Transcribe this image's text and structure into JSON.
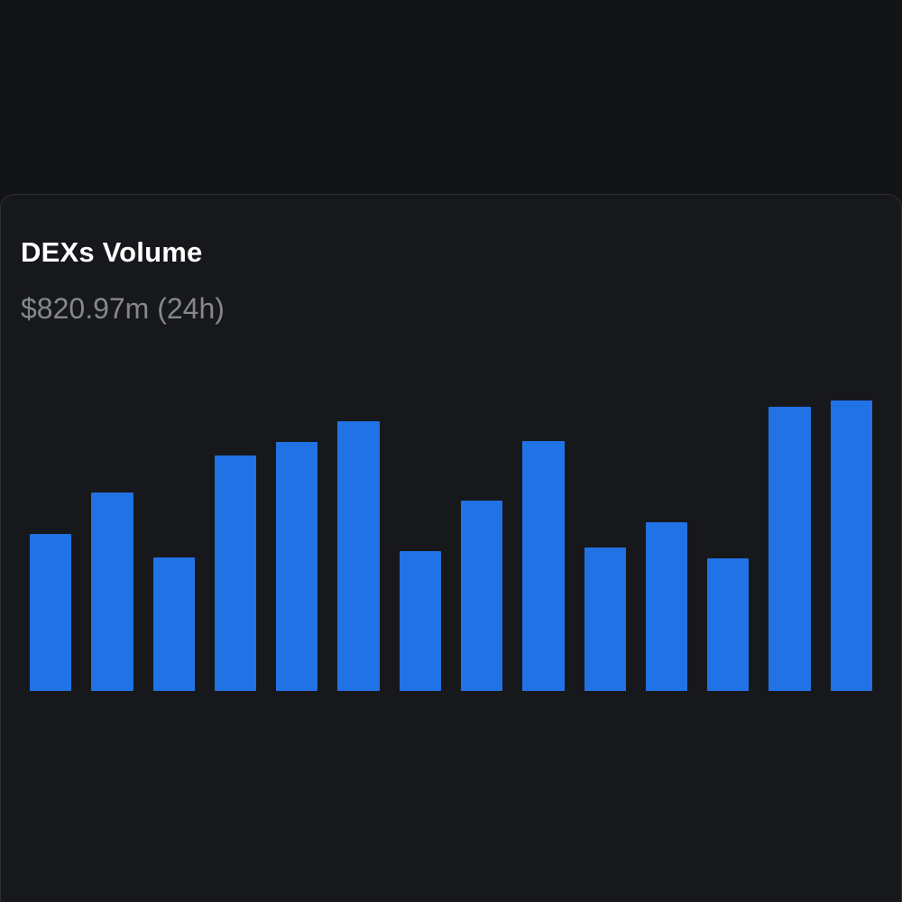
{
  "card": {
    "title": "DEXs Volume",
    "subtitle": "$820.97m (24h)"
  },
  "colors": {
    "page_background": "#131418",
    "card_background": "#17181c",
    "card_border": "#2e3036",
    "title": "#ffffff",
    "subtitle": "#85878c",
    "bar": "#2172e5"
  },
  "chart_data": {
    "type": "bar",
    "title": "DEXs Volume",
    "subtitle": "$820.97m (24h)",
    "unit": "$m (estimated daily DEX volume)",
    "categories": [],
    "values": [
      444,
      561,
      377,
      666,
      704,
      762,
      395,
      538,
      706,
      405,
      477,
      375,
      803,
      821
    ],
    "ylim": [
      0,
      821
    ],
    "xlabel": "",
    "ylabel": "",
    "grid": false,
    "legend": false,
    "axes_visible": false
  }
}
